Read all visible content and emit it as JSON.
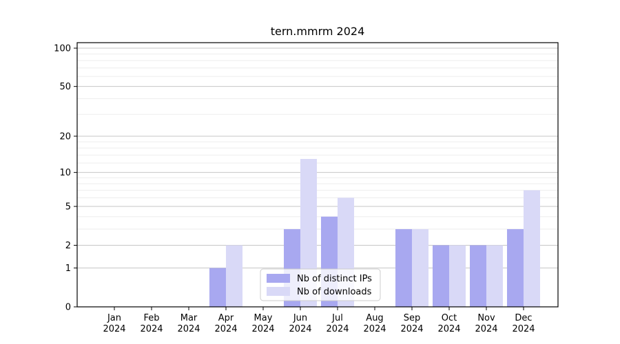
{
  "chart_data": {
    "type": "bar",
    "title": "tern.mmrm 2024",
    "categories": [
      "Jan",
      "Feb",
      "Mar",
      "Apr",
      "May",
      "Jun",
      "Jul",
      "Aug",
      "Sep",
      "Oct",
      "Nov",
      "Dec"
    ],
    "year_label": "2024",
    "series": [
      {
        "name": "Nb of distinct IPs",
        "color": "#a8a8f0",
        "values": [
          0,
          0,
          0,
          1,
          0,
          3,
          4,
          0,
          3,
          2,
          2,
          3
        ]
      },
      {
        "name": "Nb of downloads",
        "color": "#d9d9f7",
        "values": [
          0,
          0,
          0,
          2,
          0,
          13,
          6,
          0,
          3,
          2,
          2,
          7
        ]
      }
    ],
    "yscale": "log1p",
    "ylim": [
      0,
      100
    ],
    "yticks": [
      0,
      1,
      2,
      5,
      10,
      20,
      50,
      100
    ],
    "minor_yticks": [
      3,
      4,
      6,
      7,
      8,
      9,
      12,
      14,
      16,
      18,
      30,
      40,
      60,
      70,
      80,
      90
    ],
    "grid": "both",
    "legend_position": "lower center",
    "colors": {
      "major_grid": "#c6c6c6",
      "minor_grid": "#ededed",
      "axis": "#000000",
      "background": "#ffffff"
    }
  }
}
